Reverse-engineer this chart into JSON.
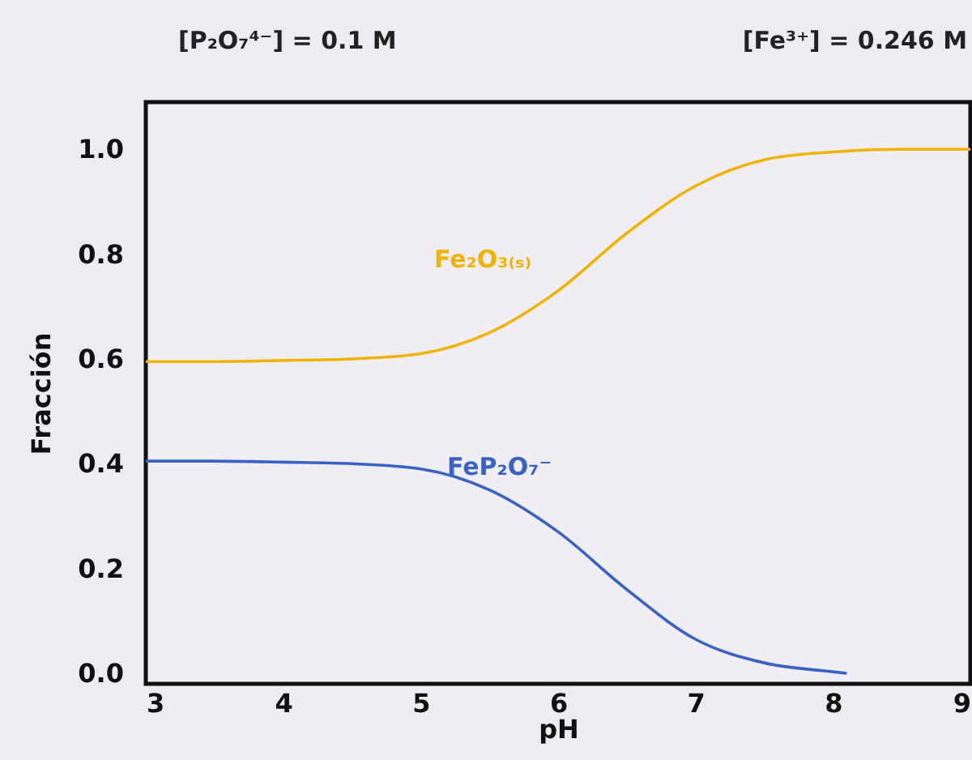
{
  "chart_data": {
    "type": "line",
    "xlabel": "pH",
    "ylabel": "Fracción",
    "annotations": [
      "[P₂O₇⁴⁻] = 0.1 M",
      "[Fe³⁺] = 0.246 M"
    ],
    "xlim": [
      3,
      9
    ],
    "ylim": [
      -0.02,
      1.09
    ],
    "xticks": [
      3,
      4,
      5,
      6,
      7,
      8,
      9
    ],
    "yticks": [
      {
        "value": 0,
        "label": "0.0"
      },
      0.2,
      0.4,
      0.6,
      0.8,
      {
        "value": 1,
        "label": "1.0"
      }
    ],
    "grid": false,
    "marker": "none",
    "line_style": "solid",
    "series": [
      {
        "name": "Fe₂O₃₍ₛ₎",
        "color": "#f0b400",
        "x": [
          3,
          3.5,
          4,
          4.5,
          5,
          5.5,
          6,
          6.5,
          7,
          7.5,
          8,
          8.5,
          9
        ],
        "values": [
          0.595,
          0.595,
          0.597,
          0.6,
          0.61,
          0.65,
          0.73,
          0.84,
          0.93,
          0.98,
          0.995,
          1.0,
          1.0
        ]
      },
      {
        "name": "FeP₂O₇⁻",
        "color": "#3a62c4",
        "x": [
          3,
          3.5,
          4,
          4.5,
          5,
          5.5,
          6,
          6.5,
          7,
          7.5,
          8,
          8.1
        ],
        "values": [
          0.405,
          0.405,
          0.403,
          0.4,
          0.39,
          0.35,
          0.27,
          0.16,
          0.065,
          0.02,
          0.003,
          0.0
        ]
      }
    ]
  }
}
